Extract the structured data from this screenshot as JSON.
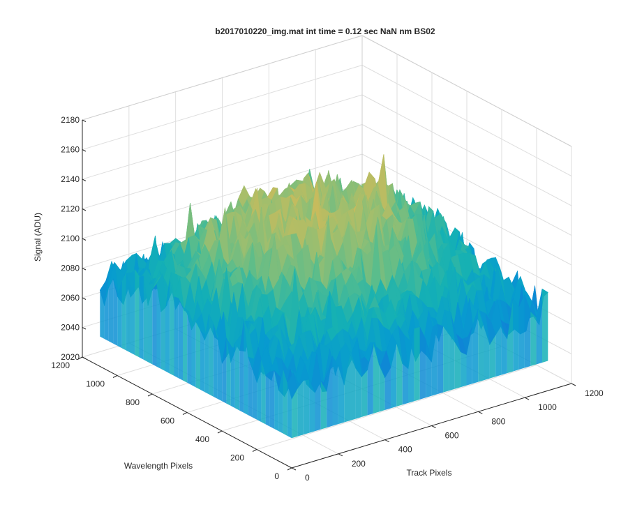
{
  "chart_data": {
    "type": "surface",
    "title": "b2017010220_img.mat int time = 0.12 sec  NaN nm BS02",
    "xlabel": "Track Pixels",
    "ylabel": "Wavelength Pixels",
    "zlabel": "Signal (ADU)",
    "xlim": [
      0,
      1200
    ],
    "ylim": [
      0,
      1200
    ],
    "zlim": [
      2020,
      2180
    ],
    "xticks": [
      0,
      200,
      400,
      600,
      800,
      1000,
      1200
    ],
    "yticks": [
      0,
      200,
      400,
      600,
      800,
      1000,
      1200
    ],
    "zticks": [
      2020,
      2040,
      2060,
      2080,
      2100,
      2120,
      2140,
      2160,
      2180
    ],
    "x_extent": [
      1,
      1100
    ],
    "y_extent": [
      1,
      1100
    ],
    "signal_summary": {
      "edge_mean": 2075,
      "center_mean": 2125,
      "noise_amplitude": 15,
      "min_approx": 2030,
      "max_approx": 2160
    },
    "colormap": "parula",
    "grid": true
  }
}
